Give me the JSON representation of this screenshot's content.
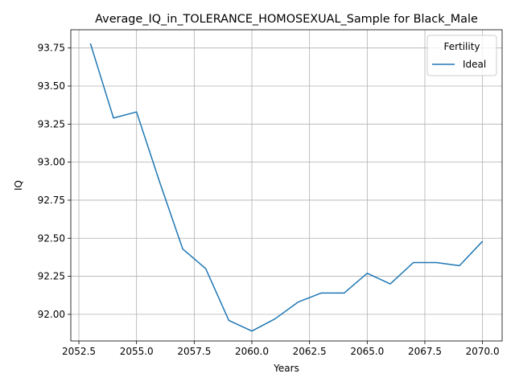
{
  "chart_data": {
    "type": "line",
    "title": "Average_IQ_in_TOLERANCE_HOMOSEXUAL_Sample for Black_Male",
    "xlabel": "Years",
    "ylabel": "IQ",
    "xlim": [
      2052.15,
      2070.85
    ],
    "ylim": [
      91.825,
      93.87
    ],
    "xticks": [
      2052.5,
      2055.0,
      2057.5,
      2060.0,
      2062.5,
      2065.0,
      2067.5,
      2070.0
    ],
    "xtick_labels": [
      "2052.5",
      "2055.0",
      "2057.5",
      "2060.0",
      "2062.5",
      "2065.0",
      "2067.5",
      "2070.0"
    ],
    "yticks": [
      92.0,
      92.25,
      92.5,
      92.75,
      93.0,
      93.25,
      93.5,
      93.75
    ],
    "ytick_labels": [
      "92.00",
      "92.25",
      "92.50",
      "92.75",
      "93.00",
      "93.25",
      "93.50",
      "93.75"
    ],
    "grid": true,
    "legend": {
      "title": "Fertility",
      "placement": "top-right"
    },
    "series": [
      {
        "name": "Ideal",
        "color": "#1f77b4",
        "x": [
          2053,
          2054,
          2055,
          2056,
          2057,
          2058,
          2059,
          2060,
          2061,
          2062,
          2063,
          2064,
          2065,
          2066,
          2067,
          2068,
          2069,
          2070
        ],
        "y": [
          93.78,
          93.29,
          93.33,
          92.87,
          92.43,
          92.3,
          91.96,
          91.89,
          91.97,
          92.08,
          92.14,
          92.14,
          92.27,
          92.2,
          92.34,
          92.34,
          92.32,
          92.48
        ]
      }
    ]
  }
}
